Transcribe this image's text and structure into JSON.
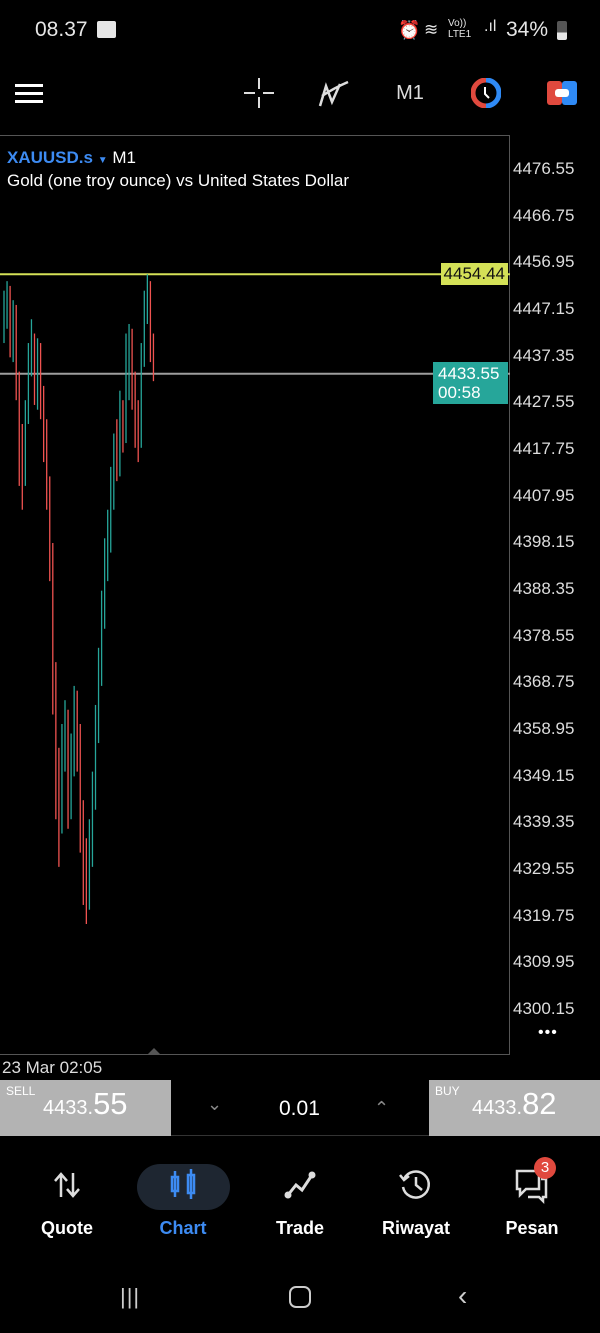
{
  "status_bar": {
    "time": "08.37",
    "battery": "34%",
    "network": "Vo)) LTE1"
  },
  "toolbar": {
    "timeframe": "M1",
    "icons": [
      "menu-icon",
      "crosshair-icon",
      "indicators-icon",
      "timeframe",
      "clock-icon",
      "trade-toggle-icon"
    ]
  },
  "chart": {
    "symbol": "XAUUSD.s",
    "timeframe": "M1",
    "description": "Gold (one troy ounce) vs United States Dollar",
    "high_line": "4454.44",
    "bid_label": "4433.55",
    "countdown": "00:58",
    "date_label": "23 Mar 02:05",
    "more": "•••",
    "colors": {
      "bull": "#26a69a",
      "bear": "#ef5350",
      "high_line": "#d4e157",
      "bid_line": "#9e9e9e",
      "bid_badge": "#26a69a"
    }
  },
  "chart_data": {
    "type": "candlestick",
    "ylim": [
      4300.15,
      4476.55
    ],
    "y_ticks": [
      "4476.55",
      "4466.75",
      "4456.95",
      "4447.15",
      "4437.35",
      "4427.55",
      "4417.75",
      "4407.95",
      "4398.15",
      "4388.35",
      "4378.55",
      "4368.75",
      "4358.95",
      "4349.15",
      "4339.35",
      "4329.55",
      "4319.75",
      "4309.95",
      "4300.15"
    ],
    "ohlc": [
      [
        4442,
        4451,
        4440,
        4445
      ],
      [
        4445,
        4453,
        4443,
        4450
      ],
      [
        4450,
        4452,
        4437,
        4440
      ],
      [
        4440,
        4449,
        4436,
        4446
      ],
      [
        4446,
        4448,
        4428,
        4432
      ],
      [
        4432,
        4434,
        4410,
        4420
      ],
      [
        4420,
        4423,
        4405,
        4412
      ],
      [
        4412,
        4428,
        4410,
        4425
      ],
      [
        4425,
        4440,
        4423,
        4436
      ],
      [
        4436,
        4445,
        4433,
        4440
      ],
      [
        4440,
        4442,
        4427,
        4430
      ],
      [
        4430,
        4441,
        4426,
        4438
      ],
      [
        4438,
        4440,
        4424,
        4428
      ],
      [
        4428,
        4431,
        4415,
        4420
      ],
      [
        4420,
        4424,
        4405,
        4410
      ],
      [
        4410,
        4412,
        4390,
        4395
      ],
      [
        4395,
        4398,
        4362,
        4370
      ],
      [
        4370,
        4373,
        4340,
        4350
      ],
      [
        4350,
        4355,
        4330,
        4340
      ],
      [
        4340,
        4360,
        4337,
        4355
      ],
      [
        4355,
        4365,
        4350,
        4360
      ],
      [
        4360,
        4363,
        4338,
        4345
      ],
      [
        4345,
        4358,
        4340,
        4352
      ],
      [
        4352,
        4368,
        4349,
        4365
      ],
      [
        4365,
        4367,
        4350,
        4358
      ],
      [
        4358,
        4360,
        4333,
        4340
      ],
      [
        4340,
        4344,
        4322,
        4330
      ],
      [
        4330,
        4336,
        4318,
        4325
      ],
      [
        4325,
        4340,
        4321,
        4335
      ],
      [
        4335,
        4350,
        4330,
        4345
      ],
      [
        4345,
        4364,
        4342,
        4360
      ],
      [
        4360,
        4376,
        4356,
        4372
      ],
      [
        4372,
        4388,
        4368,
        4385
      ],
      [
        4385,
        4399,
        4380,
        4395
      ],
      [
        4395,
        4405,
        4390,
        4400
      ],
      [
        4400,
        4414,
        4396,
        4410
      ],
      [
        4410,
        4421,
        4405,
        4418
      ],
      [
        4418,
        4424,
        4411,
        4415
      ],
      [
        4415,
        4430,
        4412,
        4425
      ],
      [
        4425,
        4428,
        4417,
        4422
      ],
      [
        4422,
        4442,
        4419,
        4432
      ],
      [
        4432,
        4444,
        4428,
        4440
      ],
      [
        4440,
        4443,
        4426,
        4430
      ],
      [
        4430,
        4434,
        4418,
        4425
      ],
      [
        4425,
        4428,
        4415,
        4420
      ],
      [
        4420,
        4440,
        4418,
        4438
      ],
      [
        4438,
        4451,
        4435,
        4448
      ],
      [
        4448,
        4454.44,
        4444,
        4452
      ],
      [
        4452,
        4453,
        4436,
        4440
      ],
      [
        4440,
        4442,
        4432,
        4433.55
      ]
    ]
  },
  "trade_bar": {
    "sell_label": "SELL",
    "sell_main": "4433.",
    "sell_big": "55",
    "volume": "0.01",
    "buy_label": "BUY",
    "buy_main": "4433.",
    "buy_big": "82"
  },
  "bottom_nav": [
    {
      "label": "Quote",
      "icon": "arrows-updown-icon"
    },
    {
      "label": "Chart",
      "icon": "candles-icon",
      "active": true
    },
    {
      "label": "Trade",
      "icon": "trend-icon"
    },
    {
      "label": "Riwayat",
      "icon": "history-icon"
    },
    {
      "label": "Pesan",
      "icon": "messages-icon",
      "badge": "3"
    }
  ]
}
